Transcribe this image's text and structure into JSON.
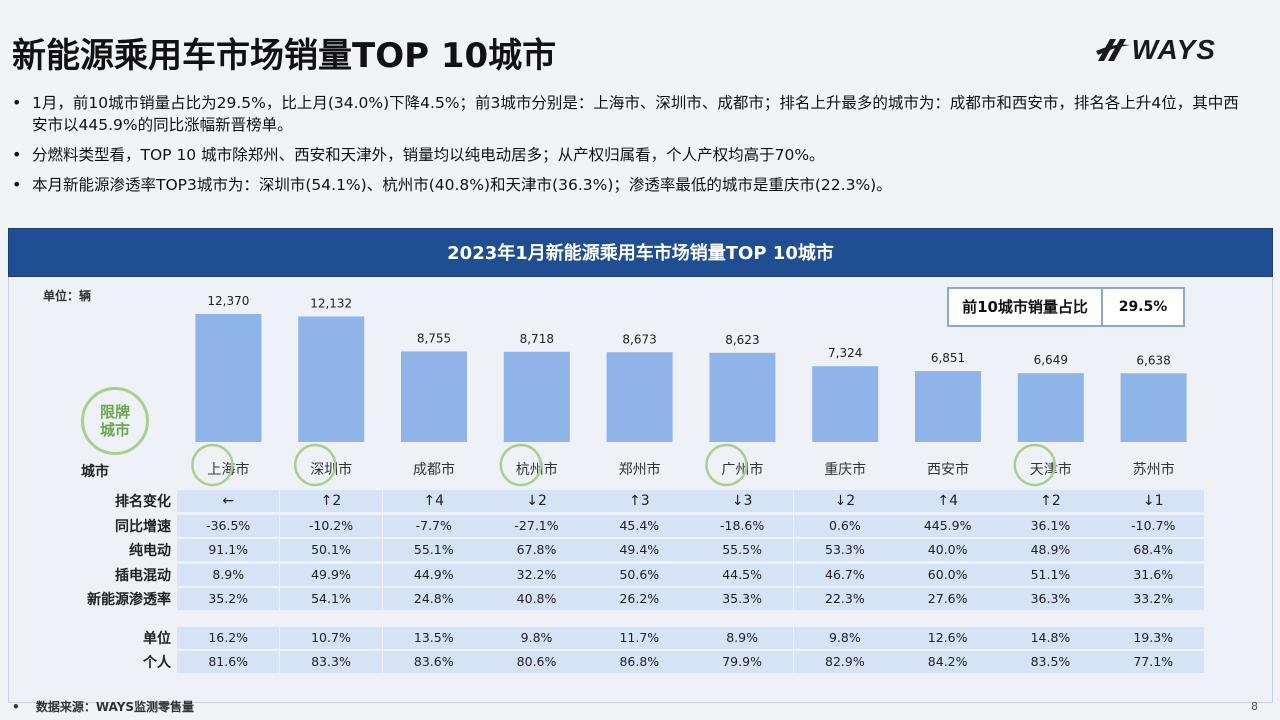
{
  "title": "新能源乘用车市场销量TOP 10城市",
  "logo": {
    "text": "WAYS",
    "icon": "ways-slash-logo-icon"
  },
  "bullets": [
    "1月，前10城市销量占比为29.5%，比上月(34.0%)下降4.5%；前3城市分别是：上海市、深圳市、成都市；排名上升最多的城市为：成都市和西安市，排名各上升4位，其中西安市以445.9%的同比涨幅新晋榜单。",
    "分燃料类型看，TOP 10 城市除郑州、西安和天津外，销量均以纯电动居多；从产权归属看，个人产权均高于70%。",
    "本月新能源渗透率TOP3城市为：深圳市(54.1%)、杭州市(40.8%)和天津市(36.3%)；渗透率最低的城市是重庆市(22.3%)。"
  ],
  "panel": {
    "header": "2023年1月新能源乘用车市场销量TOP 10城市",
    "unit": "单位：辆",
    "share_label": "前10城市销量占比",
    "share_value": "29.5%",
    "badge_line1": "限牌",
    "badge_line2": "城市",
    "city_label": "城市"
  },
  "colors": {
    "bar": "#8fb4ea",
    "header": "#1f4e92",
    "cell": "#d6e2f5",
    "circle": "#a8d08d"
  },
  "chart_data": {
    "type": "bar",
    "categories": [
      "上海市",
      "深圳市",
      "成都市",
      "杭州市",
      "郑州市",
      "广州市",
      "重庆市",
      "西安市",
      "天津市",
      "苏州市"
    ],
    "values": [
      12370,
      12132,
      8755,
      8718,
      8673,
      8623,
      7324,
      6851,
      6649,
      6638
    ],
    "value_labels": [
      "12,370",
      "12,132",
      "8,755",
      "8,718",
      "8,673",
      "8,623",
      "7,324",
      "6,851",
      "6,649",
      "6,638"
    ],
    "restricted_cities": [
      true,
      true,
      false,
      true,
      false,
      true,
      false,
      false,
      true,
      false
    ],
    "ylim": [
      0,
      12370
    ]
  },
  "table": {
    "rows": [
      {
        "label": "排名变化",
        "values": [
          "←",
          "↑2",
          "↑4",
          "↓2",
          "↑3",
          "↓3",
          "↓2",
          "↑4",
          "↑2",
          "↓1"
        ]
      },
      {
        "label": "同比增速",
        "values": [
          "-36.5%",
          "-10.2%",
          "-7.7%",
          "-27.1%",
          "45.4%",
          "-18.6%",
          "0.6%",
          "445.9%",
          "36.1%",
          "-10.7%"
        ]
      },
      {
        "label": "纯电动",
        "values": [
          "91.1%",
          "50.1%",
          "55.1%",
          "67.8%",
          "49.4%",
          "55.5%",
          "53.3%",
          "40.0%",
          "48.9%",
          "68.4%"
        ]
      },
      {
        "label": "插电混动",
        "values": [
          "8.9%",
          "49.9%",
          "44.9%",
          "32.2%",
          "50.6%",
          "44.5%",
          "46.7%",
          "60.0%",
          "51.1%",
          "31.6%"
        ]
      },
      {
        "label": "新能源渗透率",
        "values": [
          "35.2%",
          "54.1%",
          "24.8%",
          "40.8%",
          "26.2%",
          "35.3%",
          "22.3%",
          "27.6%",
          "36.3%",
          "33.2%"
        ]
      }
    ],
    "rows2": [
      {
        "label": "单位",
        "values": [
          "16.2%",
          "10.7%",
          "13.5%",
          "9.8%",
          "11.7%",
          "8.9%",
          "9.8%",
          "12.6%",
          "14.8%",
          "19.3%"
        ]
      },
      {
        "label": "个人",
        "values": [
          "81.6%",
          "83.3%",
          "83.6%",
          "80.6%",
          "86.8%",
          "79.9%",
          "82.9%",
          "84.2%",
          "83.5%",
          "77.1%"
        ]
      }
    ]
  },
  "footer": {
    "bullet": "•",
    "source": "数据来源：WAYS监测零售量"
  },
  "page_number": "8"
}
